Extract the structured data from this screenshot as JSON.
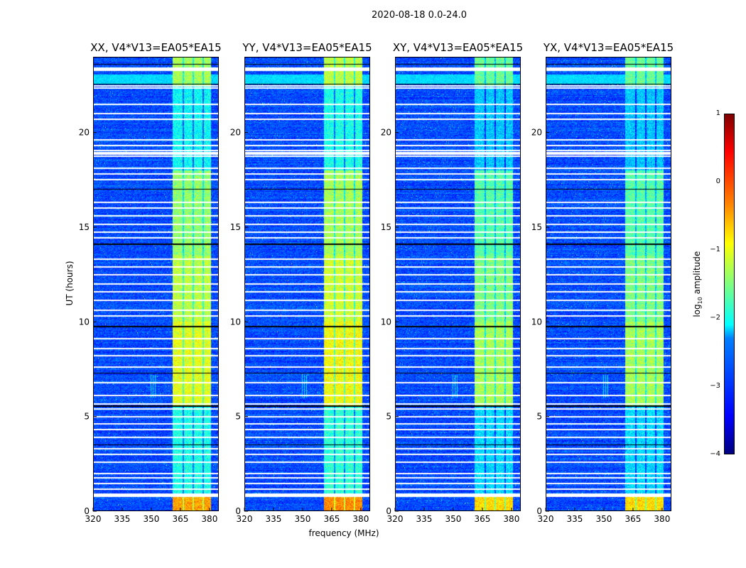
{
  "figure": {
    "suptitle": "2020-08-18 0.0-24.0",
    "xlabel": "frequency (MHz)",
    "ylabel": "UT (hours)"
  },
  "colorbar": {
    "label_main": "log",
    "label_sub": "10",
    "label_rest": " amplitude",
    "ticks": [
      "1",
      "0",
      "−1",
      "−2",
      "−3",
      "−4"
    ],
    "tick_values": [
      1,
      0,
      -1,
      -2,
      -3,
      -4
    ],
    "range": [
      -4,
      1
    ],
    "colormap": "jet"
  },
  "chart_data": [
    {
      "type": "heatmap",
      "title": "XX, V4*V13=EA05*EA15",
      "xlim": [
        320,
        384.8
      ],
      "ylim": [
        0,
        24
      ],
      "xticks": [
        "320",
        "335",
        "350",
        "365",
        "380"
      ],
      "xtick_values": [
        320,
        335,
        350,
        365,
        380
      ],
      "yticks": [
        "0",
        "5",
        "10",
        "15",
        "20"
      ],
      "ytick_values": [
        0,
        5,
        10,
        15,
        20
      ],
      "background_level": -3.0,
      "band_mhz": [
        361,
        380.7
      ],
      "band_level": -1.2,
      "band_offset": 0
    },
    {
      "type": "heatmap",
      "title": "YY, V4*V13=EA05*EA15",
      "xlim": [
        320,
        384.8
      ],
      "ylim": [
        0,
        24
      ],
      "xticks": [
        "320",
        "335",
        "350",
        "365",
        "380"
      ],
      "xtick_values": [
        320,
        335,
        350,
        365,
        380
      ],
      "yticks": [
        "0",
        "5",
        "10",
        "15",
        "20"
      ],
      "ytick_values": [
        0,
        5,
        10,
        15,
        20
      ],
      "background_level": -3.0,
      "band_mhz": [
        361,
        380.7
      ],
      "band_level": -1.1,
      "band_offset": 0.1
    },
    {
      "type": "heatmap",
      "title": "XY, V4*V13=EA05*EA15",
      "xlim": [
        320,
        384.8
      ],
      "ylim": [
        0,
        24
      ],
      "xticks": [
        "320",
        "335",
        "350",
        "365",
        "380"
      ],
      "xtick_values": [
        320,
        335,
        350,
        365,
        380
      ],
      "yticks": [
        "0",
        "5",
        "10",
        "15",
        "20"
      ],
      "ytick_values": [
        0,
        5,
        10,
        15,
        20
      ],
      "background_level": -3.0,
      "band_mhz": [
        361,
        380.7
      ],
      "band_level": -1.5,
      "band_offset": -0.3
    },
    {
      "type": "heatmap",
      "title": "YX, V4*V13=EA05*EA15",
      "xlim": [
        320,
        384.8
      ],
      "ylim": [
        0,
        24
      ],
      "xticks": [
        "320",
        "335",
        "350",
        "365",
        "380"
      ],
      "xtick_values": [
        320,
        335,
        350,
        365,
        380
      ],
      "yticks": [
        "0",
        "5",
        "10",
        "15",
        "20"
      ],
      "ytick_values": [
        0,
        5,
        10,
        15,
        20
      ],
      "background_level": -3.0,
      "band_mhz": [
        361,
        380.7
      ],
      "band_level": -1.5,
      "band_offset": -0.3
    }
  ],
  "flagged_hours": [
    23.3,
    23.4,
    22.45,
    22.35,
    21.5,
    21.0,
    20.7,
    19.6,
    19.3,
    19.05,
    18.95,
    18.85,
    18.75,
    18.1,
    17.8,
    17.5,
    16.3,
    16.0,
    15.6,
    15.15,
    14.75,
    14.45,
    13.3,
    12.9,
    12.5,
    12.0,
    11.6,
    11.15,
    10.6,
    10.3,
    9.1,
    8.6,
    8.2,
    7.6,
    6.8,
    6.1,
    5.65,
    5.4,
    5.0,
    4.6,
    4.3,
    3.9,
    3.3,
    3.0,
    2.6,
    2.0,
    1.75,
    1.45,
    1.15,
    0.9,
    0.8
  ],
  "dark_hours": [
    23.6,
    22.55,
    17.0,
    14.1,
    9.75,
    7.3,
    5.55,
    3.5
  ]
}
